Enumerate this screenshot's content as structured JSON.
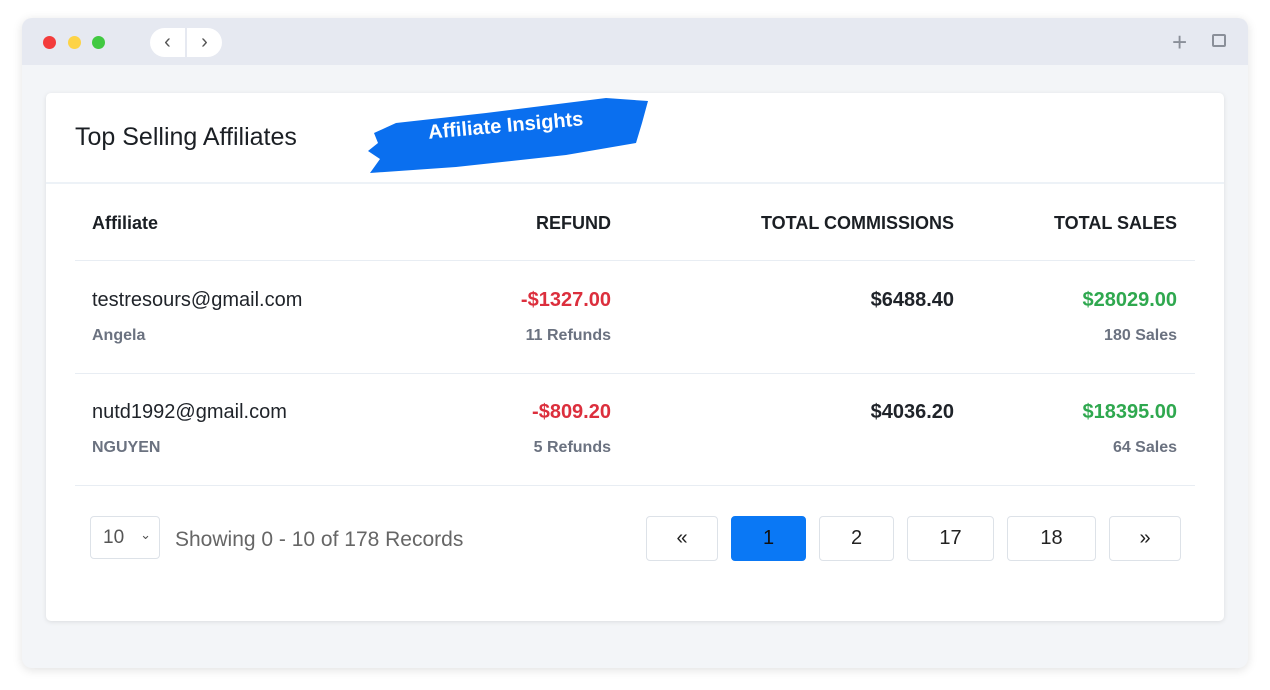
{
  "window": {
    "back_icon": "chevron-left",
    "forward_icon": "chevron-right",
    "new_tab_icon": "plus",
    "windows_icon": "copy"
  },
  "card": {
    "title": "Top Selling Affiliates",
    "badge": "Affiliate Insights",
    "accent": "#0a78f5"
  },
  "table": {
    "headers": [
      "Affiliate",
      "REFUND",
      "TOTAL COMMISSIONS",
      "TOTAL SALES"
    ],
    "rows": [
      {
        "email": "testresours@gmail.com",
        "name": "Angela",
        "refund": "-$1327.00",
        "refund_count": "11 Refunds",
        "commissions": "$6488.40",
        "sales": "$28029.00",
        "sales_count": "180 Sales"
      },
      {
        "email": "nutd1992@gmail.com",
        "name": "NGUYEN",
        "refund": "-$809.20",
        "refund_count": "5 Refunds",
        "commissions": "$4036.20",
        "sales": "$18395.00",
        "sales_count": "64 Sales"
      }
    ]
  },
  "footer": {
    "page_size": "10",
    "showing": "Showing 0 - 10 of 178 Records",
    "pages": [
      "«",
      "1",
      "2",
      "17",
      "18",
      "»"
    ],
    "current_page": "1"
  }
}
